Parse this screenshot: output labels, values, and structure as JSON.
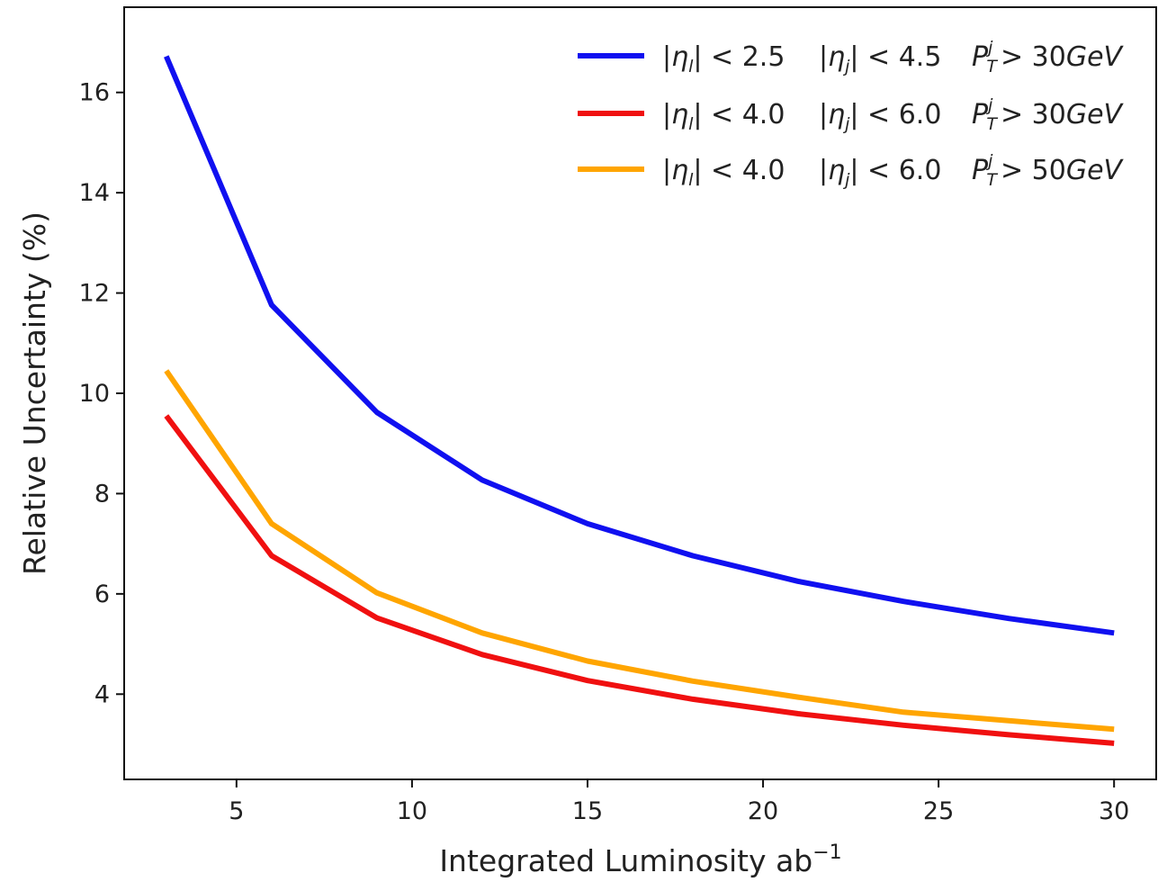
{
  "chart_data": {
    "type": "line",
    "title": "",
    "xlabel": "Integrated Luminosity ab",
    "xlabel_sup": "−1",
    "ylabel": "Relative Uncertainty (%)",
    "xlim": [
      1.8,
      31.2
    ],
    "ylim": [
      2.3,
      17.7
    ],
    "xticks": [
      5,
      10,
      15,
      20,
      25,
      30
    ],
    "yticks": [
      4,
      6,
      8,
      10,
      12,
      14,
      16
    ],
    "grid": false,
    "legend_position": "top-right",
    "x": [
      3,
      6,
      9,
      12,
      15,
      18,
      21,
      24,
      27,
      30
    ],
    "series": [
      {
        "name": "|ηl| < 2.5   |ηj| < 4.5   PTj > 30GeV",
        "eta_l": "2.5",
        "eta_j": "4.5",
        "pt": "30GeV",
        "color": "#1010f0",
        "values": [
          16.72,
          11.76,
          9.62,
          8.27,
          7.4,
          6.76,
          6.25,
          5.85,
          5.51,
          5.22
        ]
      },
      {
        "name": "|ηl| < 4.0   |ηj| < 6.0   PTj > 30GeV",
        "eta_l": "4.0",
        "eta_j": "6.0",
        "pt": "30GeV",
        "color": "#f01010",
        "values": [
          9.55,
          6.76,
          5.52,
          4.79,
          4.27,
          3.9,
          3.61,
          3.38,
          3.19,
          3.02
        ]
      },
      {
        "name": "|ηl| < 4.0   |ηj| < 6.0   PTj > 50GeV",
        "eta_l": "4.0",
        "eta_j": "6.0",
        "pt": "50GeV",
        "color": "#ffa500",
        "values": [
          10.45,
          7.4,
          6.02,
          5.22,
          4.66,
          4.26,
          3.94,
          3.64,
          3.47,
          3.3
        ]
      }
    ]
  }
}
